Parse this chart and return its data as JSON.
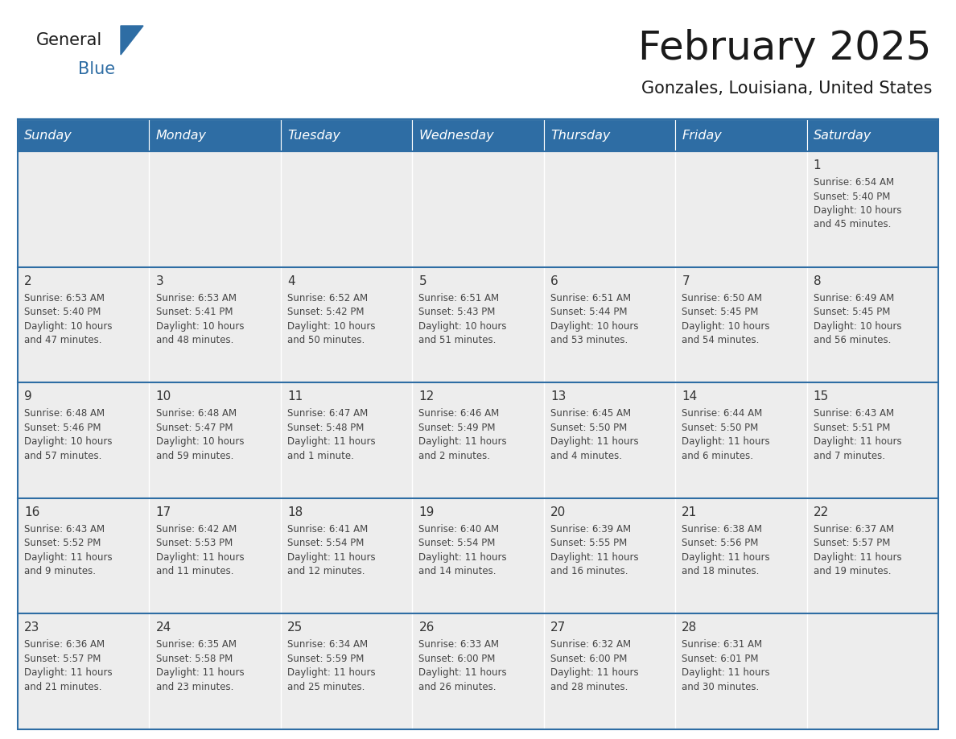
{
  "title": "February 2025",
  "subtitle": "Gonzales, Louisiana, United States",
  "days_of_week": [
    "Sunday",
    "Monday",
    "Tuesday",
    "Wednesday",
    "Thursday",
    "Friday",
    "Saturday"
  ],
  "header_bg": "#2E6DA4",
  "header_text": "#FFFFFF",
  "cell_bg": "#EDEDED",
  "cell_bg_empty_top": "#EBEBEB",
  "border_color": "#2E6DA4",
  "day_num_color": "#333333",
  "text_color": "#444444",
  "logo_general_color": "#1A1A1A",
  "logo_blue_color": "#2E6DA4",
  "separator_color": "#2E6DA4",
  "calendar_data": [
    [
      {
        "day": null,
        "info": null
      },
      {
        "day": null,
        "info": null
      },
      {
        "day": null,
        "info": null
      },
      {
        "day": null,
        "info": null
      },
      {
        "day": null,
        "info": null
      },
      {
        "day": null,
        "info": null
      },
      {
        "day": 1,
        "info": "Sunrise: 6:54 AM\nSunset: 5:40 PM\nDaylight: 10 hours\nand 45 minutes."
      }
    ],
    [
      {
        "day": 2,
        "info": "Sunrise: 6:53 AM\nSunset: 5:40 PM\nDaylight: 10 hours\nand 47 minutes."
      },
      {
        "day": 3,
        "info": "Sunrise: 6:53 AM\nSunset: 5:41 PM\nDaylight: 10 hours\nand 48 minutes."
      },
      {
        "day": 4,
        "info": "Sunrise: 6:52 AM\nSunset: 5:42 PM\nDaylight: 10 hours\nand 50 minutes."
      },
      {
        "day": 5,
        "info": "Sunrise: 6:51 AM\nSunset: 5:43 PM\nDaylight: 10 hours\nand 51 minutes."
      },
      {
        "day": 6,
        "info": "Sunrise: 6:51 AM\nSunset: 5:44 PM\nDaylight: 10 hours\nand 53 minutes."
      },
      {
        "day": 7,
        "info": "Sunrise: 6:50 AM\nSunset: 5:45 PM\nDaylight: 10 hours\nand 54 minutes."
      },
      {
        "day": 8,
        "info": "Sunrise: 6:49 AM\nSunset: 5:45 PM\nDaylight: 10 hours\nand 56 minutes."
      }
    ],
    [
      {
        "day": 9,
        "info": "Sunrise: 6:48 AM\nSunset: 5:46 PM\nDaylight: 10 hours\nand 57 minutes."
      },
      {
        "day": 10,
        "info": "Sunrise: 6:48 AM\nSunset: 5:47 PM\nDaylight: 10 hours\nand 59 minutes."
      },
      {
        "day": 11,
        "info": "Sunrise: 6:47 AM\nSunset: 5:48 PM\nDaylight: 11 hours\nand 1 minute."
      },
      {
        "day": 12,
        "info": "Sunrise: 6:46 AM\nSunset: 5:49 PM\nDaylight: 11 hours\nand 2 minutes."
      },
      {
        "day": 13,
        "info": "Sunrise: 6:45 AM\nSunset: 5:50 PM\nDaylight: 11 hours\nand 4 minutes."
      },
      {
        "day": 14,
        "info": "Sunrise: 6:44 AM\nSunset: 5:50 PM\nDaylight: 11 hours\nand 6 minutes."
      },
      {
        "day": 15,
        "info": "Sunrise: 6:43 AM\nSunset: 5:51 PM\nDaylight: 11 hours\nand 7 minutes."
      }
    ],
    [
      {
        "day": 16,
        "info": "Sunrise: 6:43 AM\nSunset: 5:52 PM\nDaylight: 11 hours\nand 9 minutes."
      },
      {
        "day": 17,
        "info": "Sunrise: 6:42 AM\nSunset: 5:53 PM\nDaylight: 11 hours\nand 11 minutes."
      },
      {
        "day": 18,
        "info": "Sunrise: 6:41 AM\nSunset: 5:54 PM\nDaylight: 11 hours\nand 12 minutes."
      },
      {
        "day": 19,
        "info": "Sunrise: 6:40 AM\nSunset: 5:54 PM\nDaylight: 11 hours\nand 14 minutes."
      },
      {
        "day": 20,
        "info": "Sunrise: 6:39 AM\nSunset: 5:55 PM\nDaylight: 11 hours\nand 16 minutes."
      },
      {
        "day": 21,
        "info": "Sunrise: 6:38 AM\nSunset: 5:56 PM\nDaylight: 11 hours\nand 18 minutes."
      },
      {
        "day": 22,
        "info": "Sunrise: 6:37 AM\nSunset: 5:57 PM\nDaylight: 11 hours\nand 19 minutes."
      }
    ],
    [
      {
        "day": 23,
        "info": "Sunrise: 6:36 AM\nSunset: 5:57 PM\nDaylight: 11 hours\nand 21 minutes."
      },
      {
        "day": 24,
        "info": "Sunrise: 6:35 AM\nSunset: 5:58 PM\nDaylight: 11 hours\nand 23 minutes."
      },
      {
        "day": 25,
        "info": "Sunrise: 6:34 AM\nSunset: 5:59 PM\nDaylight: 11 hours\nand 25 minutes."
      },
      {
        "day": 26,
        "info": "Sunrise: 6:33 AM\nSunset: 6:00 PM\nDaylight: 11 hours\nand 26 minutes."
      },
      {
        "day": 27,
        "info": "Sunrise: 6:32 AM\nSunset: 6:00 PM\nDaylight: 11 hours\nand 28 minutes."
      },
      {
        "day": 28,
        "info": "Sunrise: 6:31 AM\nSunset: 6:01 PM\nDaylight: 11 hours\nand 30 minutes."
      },
      {
        "day": null,
        "info": null
      }
    ]
  ]
}
